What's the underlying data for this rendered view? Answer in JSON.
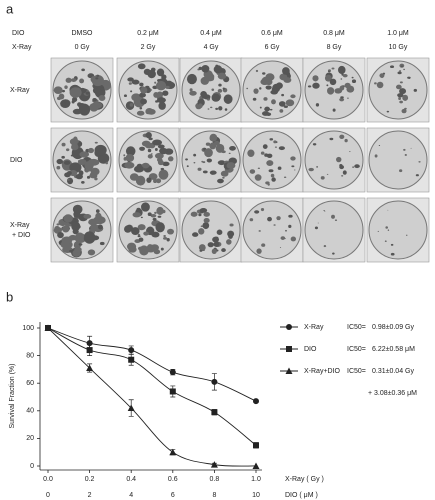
{
  "panel_a": {
    "letter": "a",
    "header_labels": [
      "DIO",
      "X-Ray"
    ],
    "dio_doses": [
      "DMSO",
      "0.2 μM",
      "0.4 μM",
      "0.6 μM",
      "0.8 μM",
      "1.0 μM"
    ],
    "xray_doses": [
      "0 Gy",
      "2 Gy",
      "4 Gy",
      "6 Gy",
      "8 Gy",
      "10 Gy"
    ],
    "row_labels": [
      [
        "X-Ray"
      ],
      [
        "DIO"
      ],
      [
        "X-Ray",
        "+ DIO"
      ]
    ]
  },
  "panel_b": {
    "letter": "b"
  },
  "chart_data": {
    "type": "line",
    "ylabel": "Survival Fraction (%)",
    "xlabel": "X-Ray ( Gy )",
    "x2label": "DIO ( μM )",
    "x": [
      0,
      0.2,
      0.4,
      0.6,
      0.8,
      1.0
    ],
    "xlim": [
      0,
      1.0
    ],
    "xticks": [
      {
        "value": 0,
        "label": "0.0"
      },
      0.2,
      0.4,
      0.6,
      0.8,
      {
        "value": 1.0,
        "label": "1.0"
      }
    ],
    "x2lim": [
      0,
      10
    ],
    "x2ticks": [
      0,
      2,
      4,
      6,
      8,
      10
    ],
    "ylim": [
      0,
      100
    ],
    "yticks": [
      0,
      20,
      40,
      60,
      80,
      100
    ],
    "ic50_label": "IC50=",
    "series": [
      {
        "name": "X-Ray",
        "color": "#222222",
        "marker": "circle",
        "values": [
          100,
          89,
          84,
          68,
          61,
          47
        ],
        "errors": [
          0,
          5,
          3,
          2,
          6,
          1
        ],
        "ic50": "0.98±0.09 Gy"
      },
      {
        "name": "DIO",
        "color": "#222222",
        "marker": "square",
        "values": [
          100,
          84,
          77,
          54,
          39,
          15
        ],
        "errors": [
          0,
          4,
          4,
          4,
          2,
          2
        ],
        "ic50": "6.22±0.58 μM"
      },
      {
        "name": "X-Ray+DIO",
        "color": "#222222",
        "marker": "triangle",
        "values": [
          100,
          71,
          42,
          10,
          1,
          0
        ],
        "errors": [
          0,
          3,
          6,
          2,
          1,
          0
        ],
        "ic50": "0.31±0.04 Gy",
        "ic50_extra": "+ 3.08±0.36 μM"
      }
    ]
  }
}
